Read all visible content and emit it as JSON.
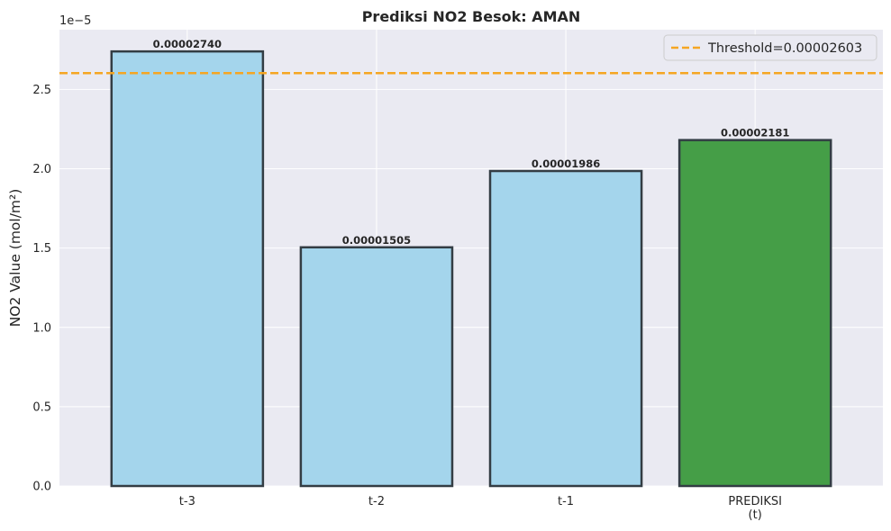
{
  "chart_data": {
    "type": "bar",
    "title": "Prediksi NO2 Besok: AMAN",
    "xlabel": "",
    "ylabel": "NO2 Value (mol/m²)",
    "scale_offset_label": "1e−5",
    "categories": [
      "t-3",
      "t-2",
      "t-1",
      "PREDIKSI\n(t)"
    ],
    "values": [
      2.74e-05,
      1.505e-05,
      1.986e-05,
      2.181e-05
    ],
    "value_labels": [
      "0.00002740",
      "0.00001505",
      "0.00001986",
      "0.00002181"
    ],
    "bar_colors": [
      "#a4d5ec",
      "#a4d5ec",
      "#a4d5ec",
      "#459e47"
    ],
    "bar_edge_color": "#333d44",
    "ylim": [
      0,
      2.877e-05
    ],
    "yticks": [
      0,
      5e-06,
      1e-05,
      1.5e-05,
      2e-05,
      2.5e-05
    ],
    "ytick_labels": [
      "0.0",
      "0.5",
      "1.0",
      "1.5",
      "2.0",
      "2.5"
    ],
    "threshold": {
      "value": 2.603e-05,
      "label": "Threshold=0.00002603",
      "color": "#f5a623",
      "style": "dashed"
    },
    "legend_position": "top-right",
    "grid": true,
    "background_color": "#eaeaf2"
  }
}
